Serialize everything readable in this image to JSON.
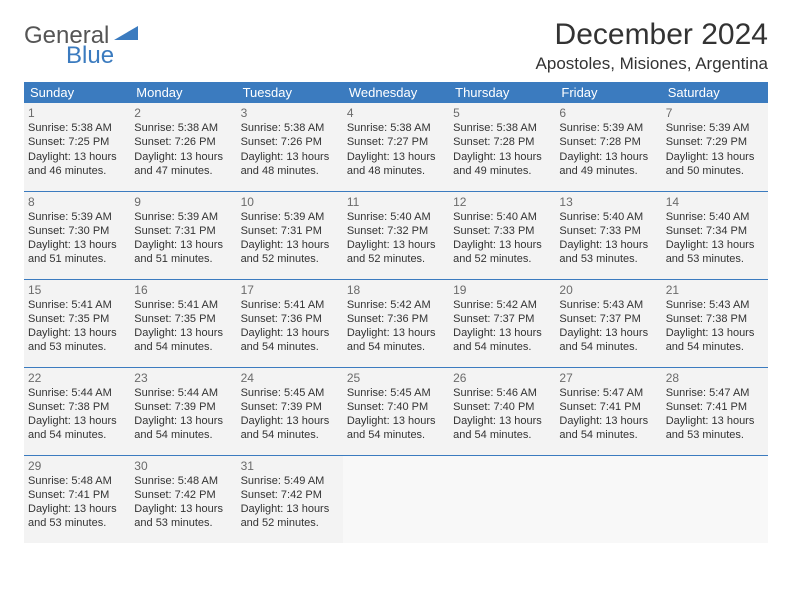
{
  "brand": {
    "text1": "General",
    "text2": "Blue"
  },
  "title": "December 2024",
  "location": "Apostoles, Misiones, Argentina",
  "colors": {
    "header_bg": "#3b7bbf",
    "header_text": "#ffffff",
    "cell_bg": "#f3f3f3",
    "border": "#3b7bbf",
    "text": "#333333",
    "daynum": "#6b6b6b"
  },
  "day_headers": [
    "Sunday",
    "Monday",
    "Tuesday",
    "Wednesday",
    "Thursday",
    "Friday",
    "Saturday"
  ],
  "days": [
    {
      "n": "1",
      "sr": "Sunrise: 5:38 AM",
      "ss": "Sunset: 7:25 PM",
      "d1": "Daylight: 13 hours",
      "d2": "and 46 minutes."
    },
    {
      "n": "2",
      "sr": "Sunrise: 5:38 AM",
      "ss": "Sunset: 7:26 PM",
      "d1": "Daylight: 13 hours",
      "d2": "and 47 minutes."
    },
    {
      "n": "3",
      "sr": "Sunrise: 5:38 AM",
      "ss": "Sunset: 7:26 PM",
      "d1": "Daylight: 13 hours",
      "d2": "and 48 minutes."
    },
    {
      "n": "4",
      "sr": "Sunrise: 5:38 AM",
      "ss": "Sunset: 7:27 PM",
      "d1": "Daylight: 13 hours",
      "d2": "and 48 minutes."
    },
    {
      "n": "5",
      "sr": "Sunrise: 5:38 AM",
      "ss": "Sunset: 7:28 PM",
      "d1": "Daylight: 13 hours",
      "d2": "and 49 minutes."
    },
    {
      "n": "6",
      "sr": "Sunrise: 5:39 AM",
      "ss": "Sunset: 7:28 PM",
      "d1": "Daylight: 13 hours",
      "d2": "and 49 minutes."
    },
    {
      "n": "7",
      "sr": "Sunrise: 5:39 AM",
      "ss": "Sunset: 7:29 PM",
      "d1": "Daylight: 13 hours",
      "d2": "and 50 minutes."
    },
    {
      "n": "8",
      "sr": "Sunrise: 5:39 AM",
      "ss": "Sunset: 7:30 PM",
      "d1": "Daylight: 13 hours",
      "d2": "and 51 minutes."
    },
    {
      "n": "9",
      "sr": "Sunrise: 5:39 AM",
      "ss": "Sunset: 7:31 PM",
      "d1": "Daylight: 13 hours",
      "d2": "and 51 minutes."
    },
    {
      "n": "10",
      "sr": "Sunrise: 5:39 AM",
      "ss": "Sunset: 7:31 PM",
      "d1": "Daylight: 13 hours",
      "d2": "and 52 minutes."
    },
    {
      "n": "11",
      "sr": "Sunrise: 5:40 AM",
      "ss": "Sunset: 7:32 PM",
      "d1": "Daylight: 13 hours",
      "d2": "and 52 minutes."
    },
    {
      "n": "12",
      "sr": "Sunrise: 5:40 AM",
      "ss": "Sunset: 7:33 PM",
      "d1": "Daylight: 13 hours",
      "d2": "and 52 minutes."
    },
    {
      "n": "13",
      "sr": "Sunrise: 5:40 AM",
      "ss": "Sunset: 7:33 PM",
      "d1": "Daylight: 13 hours",
      "d2": "and 53 minutes."
    },
    {
      "n": "14",
      "sr": "Sunrise: 5:40 AM",
      "ss": "Sunset: 7:34 PM",
      "d1": "Daylight: 13 hours",
      "d2": "and 53 minutes."
    },
    {
      "n": "15",
      "sr": "Sunrise: 5:41 AM",
      "ss": "Sunset: 7:35 PM",
      "d1": "Daylight: 13 hours",
      "d2": "and 53 minutes."
    },
    {
      "n": "16",
      "sr": "Sunrise: 5:41 AM",
      "ss": "Sunset: 7:35 PM",
      "d1": "Daylight: 13 hours",
      "d2": "and 54 minutes."
    },
    {
      "n": "17",
      "sr": "Sunrise: 5:41 AM",
      "ss": "Sunset: 7:36 PM",
      "d1": "Daylight: 13 hours",
      "d2": "and 54 minutes."
    },
    {
      "n": "18",
      "sr": "Sunrise: 5:42 AM",
      "ss": "Sunset: 7:36 PM",
      "d1": "Daylight: 13 hours",
      "d2": "and 54 minutes."
    },
    {
      "n": "19",
      "sr": "Sunrise: 5:42 AM",
      "ss": "Sunset: 7:37 PM",
      "d1": "Daylight: 13 hours",
      "d2": "and 54 minutes."
    },
    {
      "n": "20",
      "sr": "Sunrise: 5:43 AM",
      "ss": "Sunset: 7:37 PM",
      "d1": "Daylight: 13 hours",
      "d2": "and 54 minutes."
    },
    {
      "n": "21",
      "sr": "Sunrise: 5:43 AM",
      "ss": "Sunset: 7:38 PM",
      "d1": "Daylight: 13 hours",
      "d2": "and 54 minutes."
    },
    {
      "n": "22",
      "sr": "Sunrise: 5:44 AM",
      "ss": "Sunset: 7:38 PM",
      "d1": "Daylight: 13 hours",
      "d2": "and 54 minutes."
    },
    {
      "n": "23",
      "sr": "Sunrise: 5:44 AM",
      "ss": "Sunset: 7:39 PM",
      "d1": "Daylight: 13 hours",
      "d2": "and 54 minutes."
    },
    {
      "n": "24",
      "sr": "Sunrise: 5:45 AM",
      "ss": "Sunset: 7:39 PM",
      "d1": "Daylight: 13 hours",
      "d2": "and 54 minutes."
    },
    {
      "n": "25",
      "sr": "Sunrise: 5:45 AM",
      "ss": "Sunset: 7:40 PM",
      "d1": "Daylight: 13 hours",
      "d2": "and 54 minutes."
    },
    {
      "n": "26",
      "sr": "Sunrise: 5:46 AM",
      "ss": "Sunset: 7:40 PM",
      "d1": "Daylight: 13 hours",
      "d2": "and 54 minutes."
    },
    {
      "n": "27",
      "sr": "Sunrise: 5:47 AM",
      "ss": "Sunset: 7:41 PM",
      "d1": "Daylight: 13 hours",
      "d2": "and 54 minutes."
    },
    {
      "n": "28",
      "sr": "Sunrise: 5:47 AM",
      "ss": "Sunset: 7:41 PM",
      "d1": "Daylight: 13 hours",
      "d2": "and 53 minutes."
    },
    {
      "n": "29",
      "sr": "Sunrise: 5:48 AM",
      "ss": "Sunset: 7:41 PM",
      "d1": "Daylight: 13 hours",
      "d2": "and 53 minutes."
    },
    {
      "n": "30",
      "sr": "Sunrise: 5:48 AM",
      "ss": "Sunset: 7:42 PM",
      "d1": "Daylight: 13 hours",
      "d2": "and 53 minutes."
    },
    {
      "n": "31",
      "sr": "Sunrise: 5:49 AM",
      "ss": "Sunset: 7:42 PM",
      "d1": "Daylight: 13 hours",
      "d2": "and 52 minutes."
    }
  ]
}
